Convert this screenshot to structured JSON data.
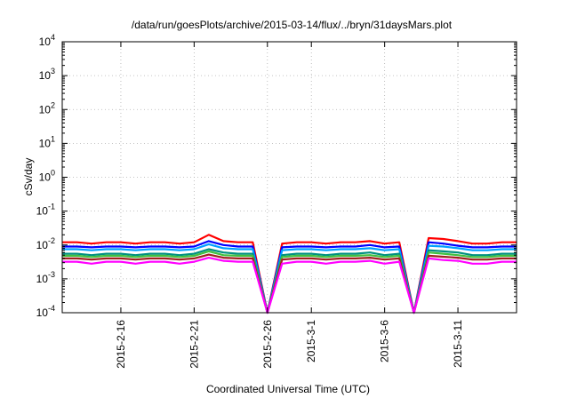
{
  "chart_data": {
    "type": "line",
    "title": "/data/run/goesPlots/archive/2015-03-14/flux/../bryn/31daysMars.plot",
    "xlabel": "Coordinated Universal Time (UTC)",
    "ylabel": "cSv/day",
    "y_scale": "log",
    "ylim": [
      0.0001,
      10000
    ],
    "xlim": [
      "2015-02-12",
      "2015-03-15"
    ],
    "grid": true,
    "y_ticks": [
      {
        "base": "10",
        "exp": "-4",
        "value": 0.0001
      },
      {
        "base": "10",
        "exp": "-3",
        "value": 0.001
      },
      {
        "base": "10",
        "exp": "-2",
        "value": 0.01
      },
      {
        "base": "10",
        "exp": "-1",
        "value": 0.1
      },
      {
        "base": "10",
        "exp": "0",
        "value": 1
      },
      {
        "base": "10",
        "exp": "1",
        "value": 10
      },
      {
        "base": "10",
        "exp": "2",
        "value": 100
      },
      {
        "base": "10",
        "exp": "3",
        "value": 1000
      },
      {
        "base": "10",
        "exp": "4",
        "value": 10000
      }
    ],
    "x_ticks": [
      {
        "label": "2015-2-16",
        "value": "2015-02-16"
      },
      {
        "label": "2015-2-21",
        "value": "2015-02-21"
      },
      {
        "label": "2015-2-26",
        "value": "2015-02-26"
      },
      {
        "label": "2015-3-1",
        "value": "2015-03-01"
      },
      {
        "label": "2015-3-6",
        "value": "2015-03-06"
      },
      {
        "label": "2015-3-11",
        "value": "2015-03-11"
      }
    ],
    "x": [
      "2015-02-12",
      "2015-02-13",
      "2015-02-14",
      "2015-02-15",
      "2015-02-16",
      "2015-02-17",
      "2015-02-18",
      "2015-02-19",
      "2015-02-20",
      "2015-02-21",
      "2015-02-22",
      "2015-02-23",
      "2015-02-24",
      "2015-02-25",
      "2015-02-26",
      "2015-02-27",
      "2015-02-28",
      "2015-03-01",
      "2015-03-02",
      "2015-03-03",
      "2015-03-04",
      "2015-03-05",
      "2015-03-06",
      "2015-03-07",
      "2015-03-08",
      "2015-03-09",
      "2015-03-10",
      "2015-03-11",
      "2015-03-12",
      "2015-03-13",
      "2015-03-14",
      "2015-03-15"
    ],
    "series": [
      {
        "color": "#ff0000",
        "values": [
          0.012,
          0.012,
          0.011,
          0.012,
          0.012,
          0.011,
          0.012,
          0.012,
          0.011,
          0.012,
          0.02,
          0.013,
          0.012,
          0.012,
          0.0001,
          0.011,
          0.012,
          0.012,
          0.011,
          0.012,
          0.012,
          0.013,
          0.011,
          0.012,
          0.0001,
          0.016,
          0.015,
          0.013,
          0.011,
          0.011,
          0.012,
          0.012
        ]
      },
      {
        "color": "#0000ff",
        "values": [
          0.009,
          0.009,
          0.0085,
          0.009,
          0.009,
          0.0085,
          0.009,
          0.009,
          0.0085,
          0.009,
          0.013,
          0.01,
          0.009,
          0.009,
          0.0001,
          0.0085,
          0.009,
          0.009,
          0.0085,
          0.009,
          0.009,
          0.01,
          0.0085,
          0.009,
          0.0001,
          0.012,
          0.011,
          0.0095,
          0.0085,
          0.0085,
          0.009,
          0.009
        ]
      },
      {
        "color": "#00a0ff",
        "values": [
          0.0075,
          0.0075,
          0.007,
          0.0075,
          0.0075,
          0.007,
          0.0075,
          0.0075,
          0.007,
          0.0075,
          0.0105,
          0.008,
          0.0075,
          0.0075,
          0.0001,
          0.007,
          0.0075,
          0.0075,
          0.007,
          0.0075,
          0.0075,
          0.008,
          0.007,
          0.0075,
          0.0001,
          0.0095,
          0.009,
          0.008,
          0.007,
          0.007,
          0.0075,
          0.0075
        ]
      },
      {
        "color": "#009080",
        "values": [
          0.0055,
          0.0055,
          0.005,
          0.0055,
          0.0055,
          0.005,
          0.0055,
          0.0055,
          0.005,
          0.0055,
          0.0075,
          0.006,
          0.0055,
          0.0055,
          0.0001,
          0.005,
          0.0055,
          0.0055,
          0.005,
          0.0055,
          0.0055,
          0.006,
          0.005,
          0.0055,
          0.0001,
          0.007,
          0.0065,
          0.006,
          0.005,
          0.005,
          0.0055,
          0.0055
        ]
      },
      {
        "color": "#40c040",
        "values": [
          0.0048,
          0.0048,
          0.0044,
          0.0048,
          0.0048,
          0.0044,
          0.0048,
          0.0048,
          0.0044,
          0.0048,
          0.0065,
          0.005,
          0.0048,
          0.0048,
          0.0001,
          0.0044,
          0.0048,
          0.0048,
          0.0044,
          0.0048,
          0.0048,
          0.005,
          0.0044,
          0.0048,
          0.0001,
          0.006,
          0.0055,
          0.005,
          0.0044,
          0.0044,
          0.0048,
          0.0048
        ]
      },
      {
        "color": "#a02020",
        "values": [
          0.004,
          0.004,
          0.0037,
          0.004,
          0.004,
          0.0037,
          0.004,
          0.004,
          0.0037,
          0.004,
          0.0052,
          0.0042,
          0.004,
          0.004,
          0.0001,
          0.0037,
          0.004,
          0.004,
          0.0037,
          0.004,
          0.004,
          0.0042,
          0.0037,
          0.004,
          0.0001,
          0.0048,
          0.0045,
          0.0042,
          0.0037,
          0.0037,
          0.004,
          0.004
        ]
      },
      {
        "color": "#ff00ff",
        "values": [
          0.0032,
          0.0032,
          0.0028,
          0.0032,
          0.0032,
          0.0028,
          0.0032,
          0.0032,
          0.0028,
          0.0032,
          0.0042,
          0.0034,
          0.0032,
          0.0032,
          0.0001,
          0.0028,
          0.0032,
          0.0032,
          0.0028,
          0.0032,
          0.0032,
          0.0034,
          0.0028,
          0.0032,
          0.0001,
          0.004,
          0.0036,
          0.0034,
          0.0028,
          0.0028,
          0.0032,
          0.0032
        ]
      }
    ]
  }
}
